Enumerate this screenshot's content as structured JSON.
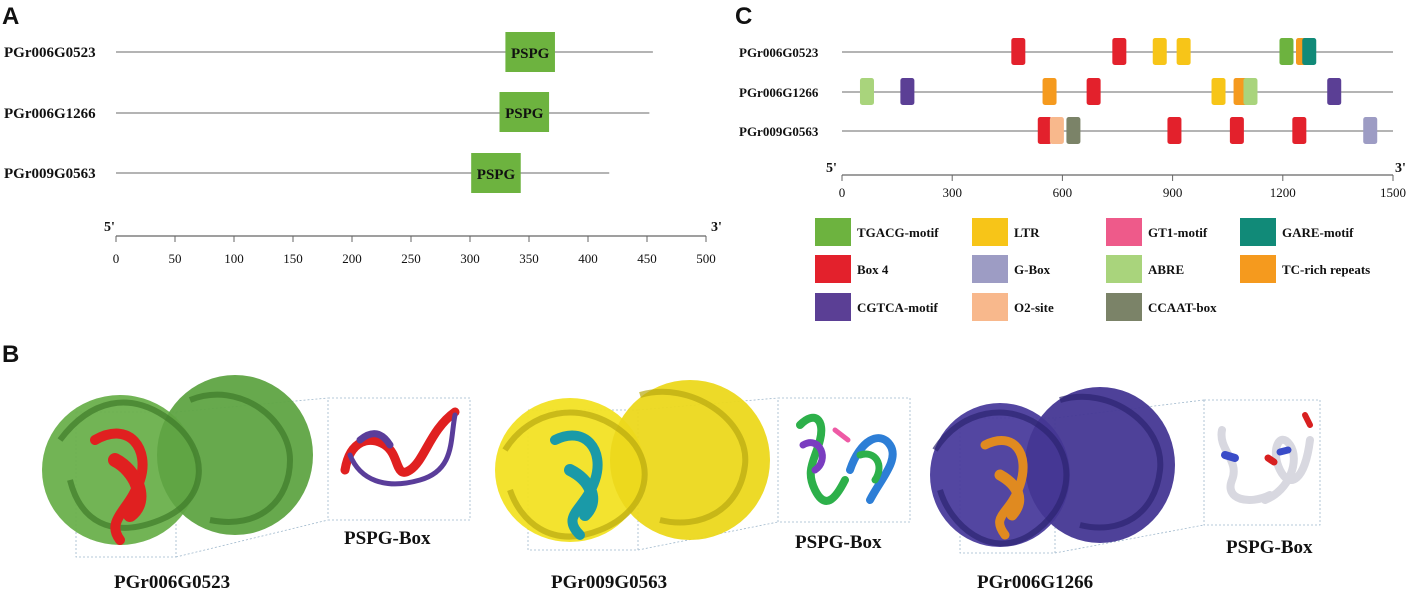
{
  "panels": {
    "a": {
      "letter": "A",
      "domain_label": "PSPG",
      "domain_color": "#6db33f",
      "axis": {
        "start_label": "5'",
        "end_label": "3'",
        "min": 0,
        "max": 500,
        "ticks": [
          "0",
          "50",
          "100",
          "150",
          "200",
          "250",
          "300",
          "350",
          "400",
          "450",
          "500"
        ]
      },
      "genes": [
        {
          "name": "PGr006G0523",
          "length": 455,
          "domain_start": 330,
          "domain_end": 372
        },
        {
          "name": "PGr006G1266",
          "length": 452,
          "domain_start": 325,
          "domain_end": 367
        },
        {
          "name": "PGr009G0563",
          "length": 418,
          "domain_start": 301,
          "domain_end": 343
        }
      ]
    },
    "b": {
      "letter": "B",
      "structures": [
        {
          "name": "PGr006G0523",
          "box_label": "PSPG-Box",
          "main_color": "#6ab04c",
          "motif_color": "#e02020"
        },
        {
          "name": "PGr009G0563",
          "box_label": "PSPG-Box",
          "main_color": "#f2e224",
          "motif_color": "#1a9aa8"
        },
        {
          "name": "PGr006G1266",
          "box_label": "PSPG-Box",
          "main_color": "#4a3c9c",
          "motif_color": "#e08a20"
        }
      ]
    },
    "c": {
      "letter": "C",
      "axis": {
        "start_label": "5'",
        "end_label": "3'",
        "min": 0,
        "max": 1500,
        "ticks": [
          "0",
          "300",
          "600",
          "900",
          "1200",
          "1500"
        ]
      },
      "genes": [
        {
          "name": "PGr006G0523",
          "elements": [
            {
              "pos": 480,
              "type": "Box 4"
            },
            {
              "pos": 755,
              "type": "Box 4"
            },
            {
              "pos": 865,
              "type": "LTR"
            },
            {
              "pos": 930,
              "type": "LTR"
            },
            {
              "pos": 1210,
              "type": "TGACG-motif"
            },
            {
              "pos": 1255,
              "type": "TC-rich repeats"
            },
            {
              "pos": 1272,
              "type": "GARE-motif"
            }
          ]
        },
        {
          "name": "PGr006G1266",
          "elements": [
            {
              "pos": 68,
              "type": "ABRE"
            },
            {
              "pos": 178,
              "type": "CGTCA-motif"
            },
            {
              "pos": 565,
              "type": "TC-rich repeats"
            },
            {
              "pos": 685,
              "type": "Box 4"
            },
            {
              "pos": 1025,
              "type": "LTR"
            },
            {
              "pos": 1085,
              "type": "TC-rich repeats"
            },
            {
              "pos": 1112,
              "type": "ABRE"
            },
            {
              "pos": 1340,
              "type": "CGTCA-motif"
            }
          ]
        },
        {
          "name": "PGr009G0563",
          "elements": [
            {
              "pos": 552,
              "type": "Box 4"
            },
            {
              "pos": 585,
              "type": "O2-site"
            },
            {
              "pos": 630,
              "type": "CCAAT-box"
            },
            {
              "pos": 905,
              "type": "Box 4"
            },
            {
              "pos": 1075,
              "type": "Box 4"
            },
            {
              "pos": 1245,
              "type": "Box 4"
            },
            {
              "pos": 1438,
              "type": "G-Box"
            }
          ]
        }
      ],
      "legend": [
        {
          "label": "TGACG-motif",
          "color": "#6db33f"
        },
        {
          "label": "LTR",
          "color": "#f7c518"
        },
        {
          "label": "GT1-motif",
          "color": "#ee5a8a"
        },
        {
          "label": "GARE-motif",
          "color": "#118a78"
        },
        {
          "label": "Box 4",
          "color": "#e3212c"
        },
        {
          "label": "G-Box",
          "color": "#9d9cc4"
        },
        {
          "label": "ABRE",
          "color": "#a9d47c"
        },
        {
          "label": "TC-rich repeats",
          "color": "#f59a1e"
        },
        {
          "label": "CGTCA-motif",
          "color": "#5b3f95"
        },
        {
          "label": "O2-site",
          "color": "#f8b88c"
        },
        {
          "label": "CCAAT-box",
          "color": "#7b8368"
        }
      ]
    }
  }
}
